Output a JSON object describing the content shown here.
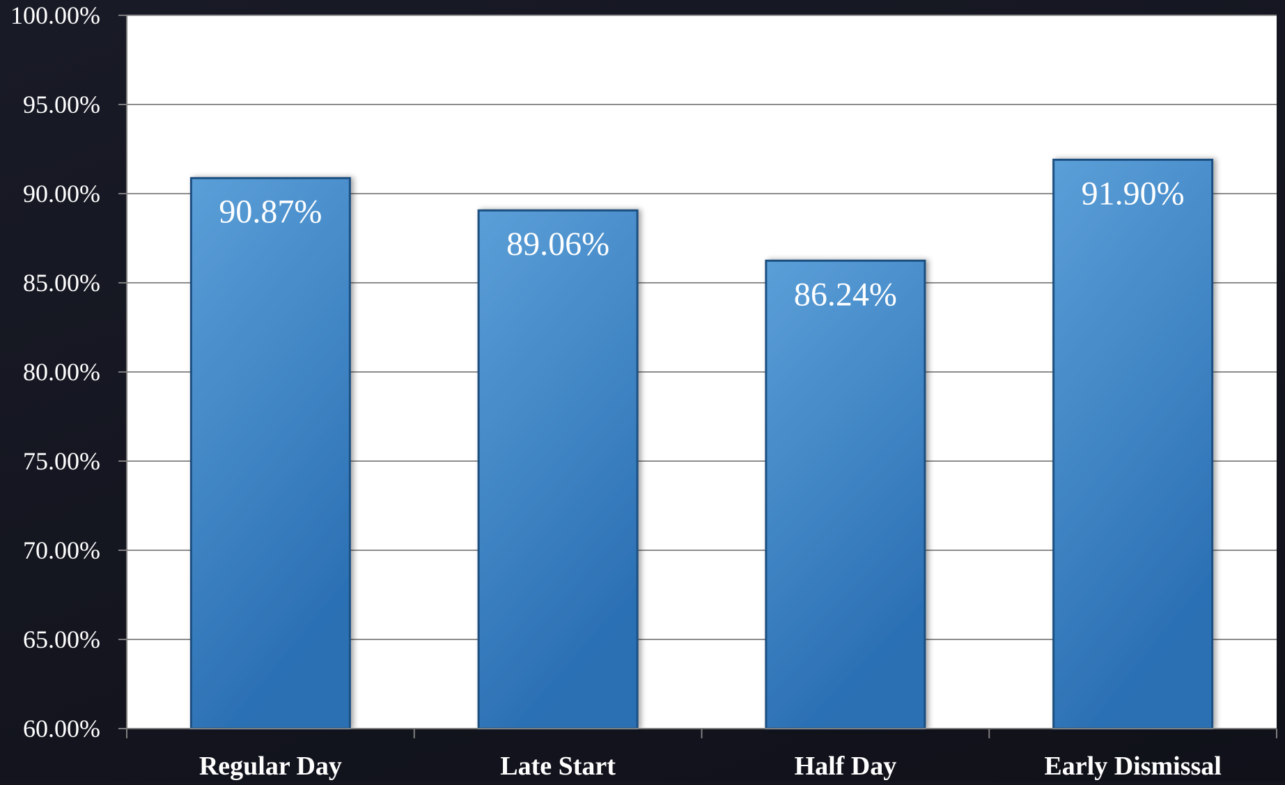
{
  "chart_data": {
    "type": "bar",
    "categories": [
      "Regular Day",
      "Late Start",
      "Half Day",
      "Early Dismissal"
    ],
    "values": [
      90.87,
      89.06,
      86.24,
      91.9
    ],
    "data_labels": [
      "90.87%",
      "89.06%",
      "86.24%",
      "91.90%"
    ],
    "ylim": [
      60,
      100
    ],
    "y_ticks": [
      60,
      65,
      70,
      75,
      80,
      85,
      90,
      95,
      100
    ],
    "y_tick_labels": [
      "60.00%",
      "65.00%",
      "70.00%",
      "75.00%",
      "80.00%",
      "85.00%",
      "90.00%",
      "95.00%",
      "100.00%"
    ],
    "title": "",
    "xlabel": "",
    "ylabel": "",
    "grid": true,
    "legend": "none",
    "colors": {
      "bar_top": "#5b9fd8",
      "bar_bottom": "#2a6fb3",
      "bar_edge": "#1d4f80",
      "plot_bg": "#ffffff",
      "page_bg": "#14151f",
      "grid": "#8c8c8c",
      "axis": "#7f7f7f"
    }
  }
}
